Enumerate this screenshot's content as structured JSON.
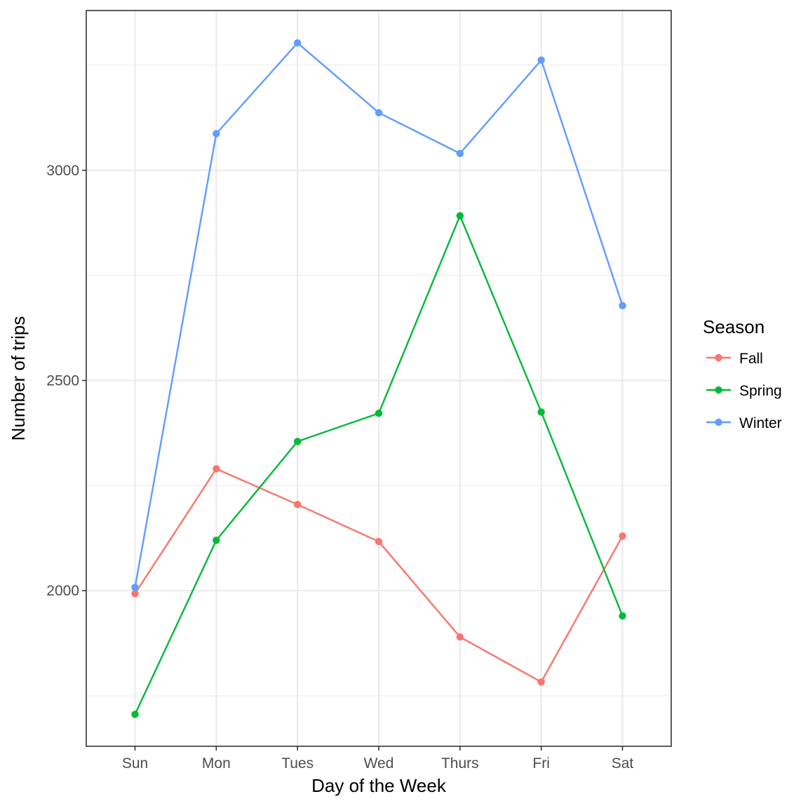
{
  "chart_data": {
    "type": "line",
    "title": "",
    "xlabel": "Day of the Week",
    "ylabel": "Number of trips",
    "categories": [
      "Sun",
      "Mon",
      "Tues",
      "Wed",
      "Thurs",
      "Fri",
      "Sat"
    ],
    "ylim": [
      1630,
      3380
    ],
    "y_ticks": [
      2000,
      2500,
      3000
    ],
    "grid": true,
    "legend": {
      "title": "Season",
      "position": "right"
    },
    "series": [
      {
        "name": "Fall",
        "color": "#F8766D",
        "values": [
          1993,
          2290,
          2205,
          2117,
          1890,
          1783,
          2130
        ]
      },
      {
        "name": "Spring",
        "color": "#00BA38",
        "values": [
          1706,
          2120,
          2355,
          2422,
          2892,
          2425,
          1940
        ]
      },
      {
        "name": "Winter",
        "color": "#619CFF",
        "values": [
          2008,
          3087,
          3303,
          3137,
          3040,
          3262,
          2678
        ]
      }
    ]
  }
}
